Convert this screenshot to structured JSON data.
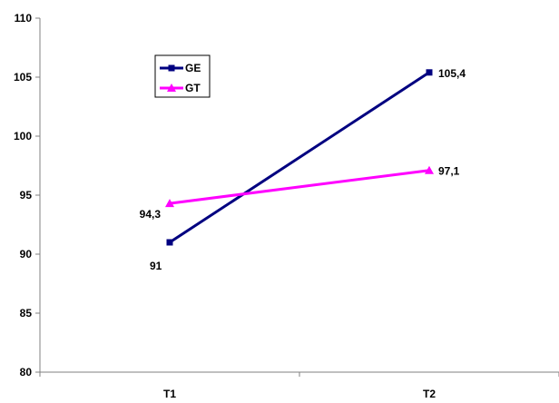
{
  "chart_data": {
    "type": "line",
    "title": "",
    "xlabel": "",
    "ylabel": "",
    "categories": [
      "T1",
      "T2"
    ],
    "ylim": [
      80,
      110
    ],
    "yticks": [
      80,
      85,
      90,
      95,
      100,
      105,
      110
    ],
    "grid": false,
    "legend_position": "top-left",
    "series": [
      {
        "name": "GE",
        "values": [
          91,
          105.4
        ],
        "value_labels": [
          "91",
          "105,4"
        ],
        "color": "#000080",
        "marker": "square"
      },
      {
        "name": "GT",
        "values": [
          94.3,
          97.1
        ],
        "value_labels": [
          "94,3",
          "97,1"
        ],
        "color": "#ff00ff",
        "marker": "triangle"
      }
    ]
  }
}
